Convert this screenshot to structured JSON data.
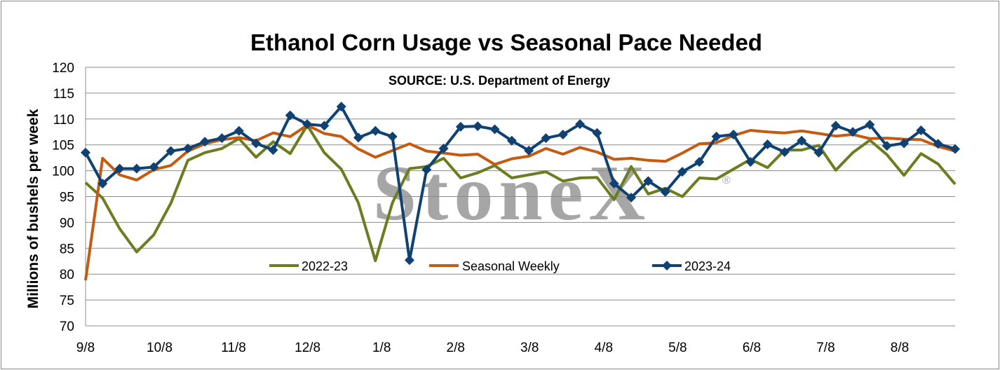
{
  "chart_data": {
    "type": "line",
    "title": "Ethanol Corn Usage vs Seasonal Pace Needed",
    "subtitle": "SOURCE: U.S. Department of Energy",
    "ylabel": "Millions of bushels per week",
    "xlabel": "",
    "watermark": "StoneX",
    "watermark_mark": "®",
    "ylim": [
      70,
      120
    ],
    "yticks": [
      70,
      75,
      80,
      85,
      90,
      95,
      100,
      105,
      110,
      115,
      120
    ],
    "grid": true,
    "legend_position": "inside-bottom",
    "xtick_labels": [
      "9/8",
      "10/8",
      "11/8",
      "12/8",
      "1/8",
      "2/8",
      "3/8",
      "4/8",
      "5/8",
      "6/8",
      "7/8",
      "8/8"
    ],
    "week_count": 52,
    "series": [
      {
        "name": "2022-23",
        "color": "#6b7d1f",
        "marker": "none",
        "values": [
          97.7,
          94.7,
          88.8,
          84.3,
          87.6,
          93.7,
          102.0,
          103.5,
          104.3,
          106.2,
          102.6,
          105.6,
          103.3,
          108.8,
          103.5,
          100.3,
          93.8,
          82.6,
          93.8,
          100.4,
          100.8,
          102.4,
          98.6,
          99.6,
          101.0,
          98.6,
          99.2,
          99.8,
          98.0,
          98.6,
          98.7,
          94.4,
          100.8,
          95.5,
          96.6,
          95.0,
          98.6,
          98.4,
          100.3,
          102.2,
          100.6,
          104.0,
          104.0,
          104.9,
          100.1,
          103.5,
          105.9,
          103.1,
          99.1,
          103.3,
          101.3,
          97.4
        ]
      },
      {
        "name": "Seasonal Weekly",
        "color": "#c55a11",
        "marker": "none",
        "values": [
          78.8,
          102.4,
          99.2,
          98.2,
          100.2,
          101.0,
          103.8,
          105.2,
          106.0,
          106.4,
          105.8,
          107.3,
          106.6,
          108.8,
          107.2,
          106.6,
          104.2,
          102.6,
          103.9,
          105.2,
          103.8,
          103.4,
          103.0,
          103.2,
          101.2,
          102.3,
          102.8,
          104.3,
          103.2,
          104.5,
          103.6,
          102.2,
          102.4,
          102.0,
          101.8,
          103.4,
          105.2,
          105.4,
          106.8,
          107.8,
          107.5,
          107.3,
          107.7,
          107.2,
          106.7,
          107.0,
          106.2,
          106.3,
          106.1,
          106.0,
          104.7,
          103.8
        ]
      },
      {
        "name": "2023-24",
        "color": "#0f4173",
        "marker": "diamond",
        "values": [
          103.5,
          97.5,
          100.4,
          100.4,
          100.7,
          103.8,
          104.3,
          105.6,
          106.3,
          107.7,
          105.3,
          104.0,
          110.7,
          109.0,
          108.7,
          112.4,
          106.4,
          107.7,
          106.6,
          82.7,
          100.2,
          104.3,
          108.5,
          108.6,
          108.0,
          105.8,
          103.9,
          106.3,
          107.0,
          109.0,
          107.3,
          97.5,
          94.8,
          98.0,
          95.9,
          99.8,
          101.7,
          106.6,
          107.0,
          101.7,
          105.1,
          103.6,
          105.8,
          103.5,
          108.7,
          107.5,
          108.9,
          104.8,
          105.3,
          107.8,
          105.2,
          104.2
        ]
      }
    ]
  }
}
